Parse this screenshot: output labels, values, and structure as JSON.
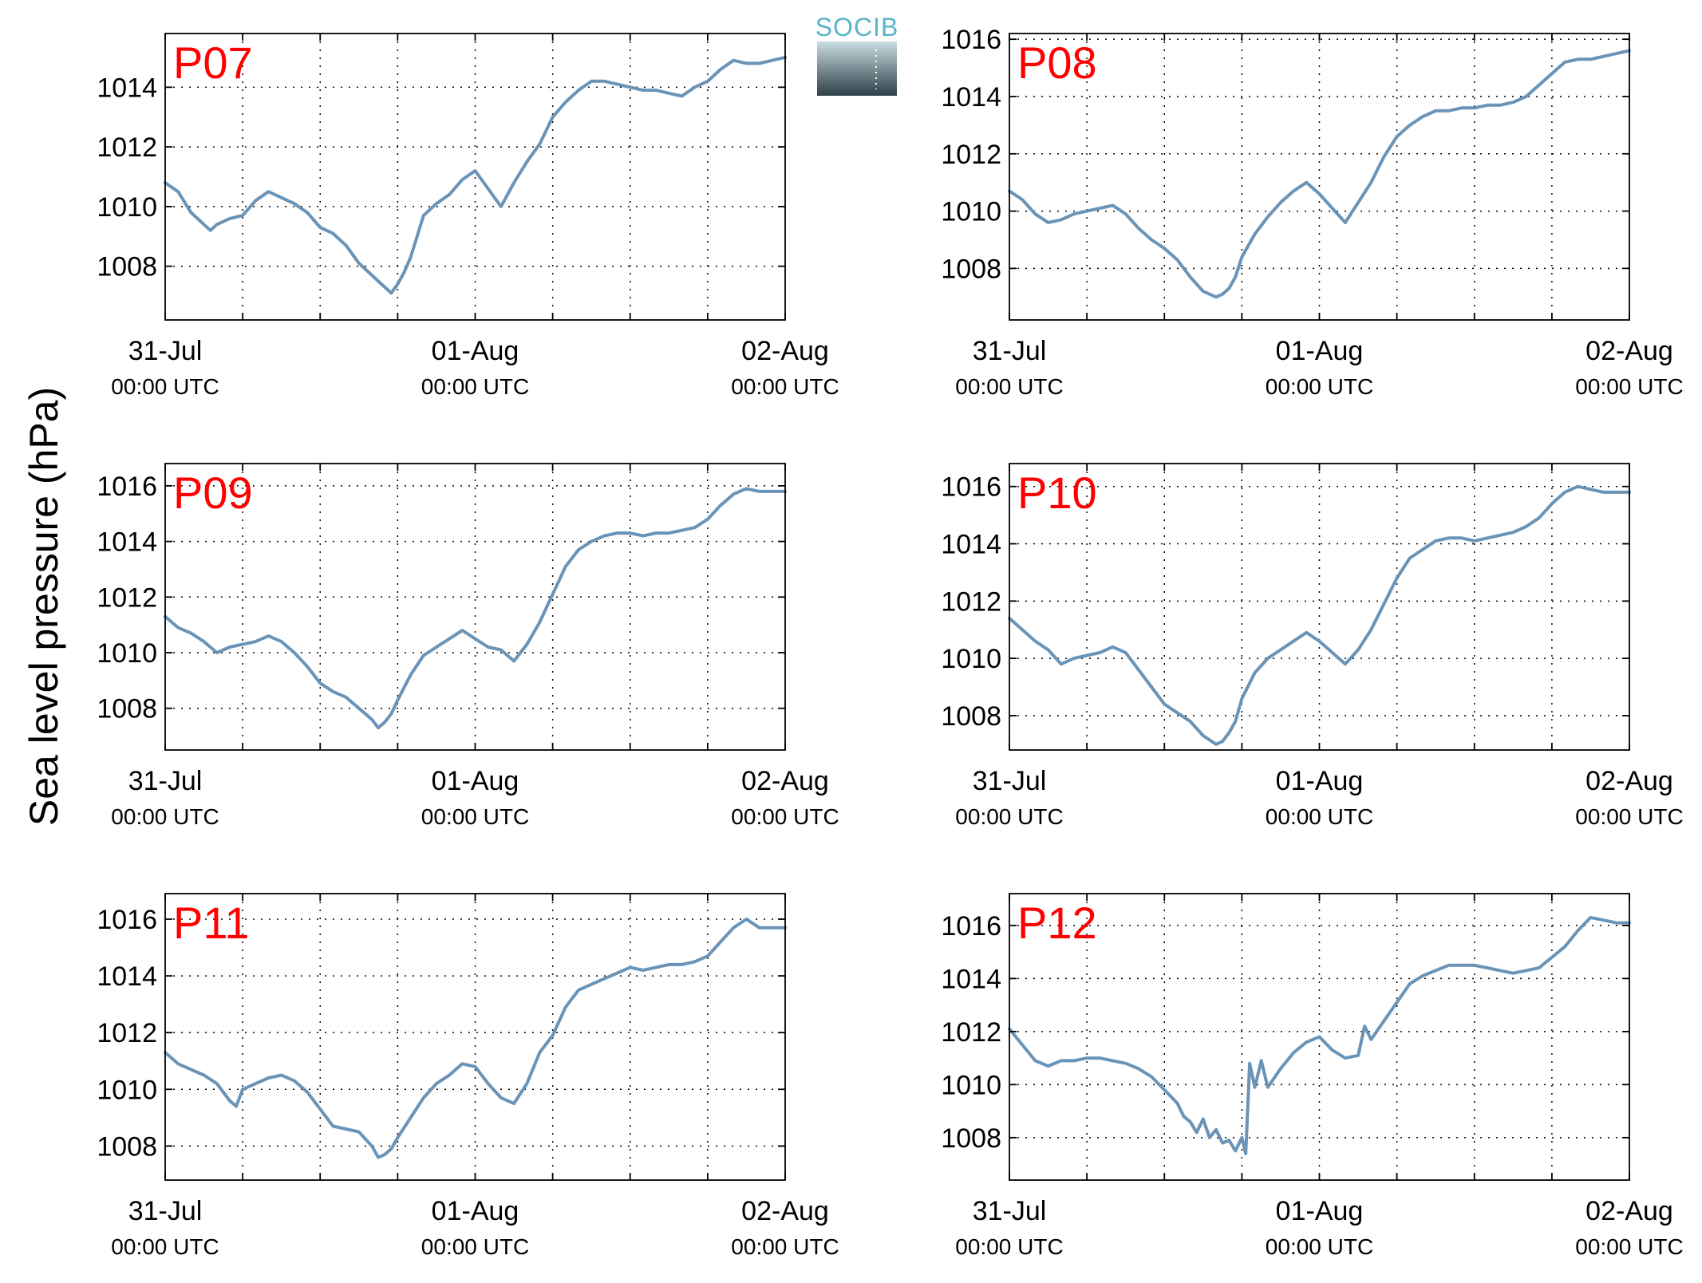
{
  "figure": {
    "ylabel": "Sea level pressure (hPa)",
    "logo_text": "SOCIB",
    "logo_colors": {
      "text": "#5ab4c8",
      "top": "#c8dde2",
      "bottom": "#2e4048"
    }
  },
  "chart_data": [
    {
      "type": "line",
      "title": "P07",
      "title_color": "#ff0000",
      "ylim": [
        1006.2,
        1015.8
      ],
      "yticks": [
        1008,
        1010,
        1012,
        1014
      ],
      "xlim": [
        0,
        48
      ],
      "grid": true,
      "line_color": "#6a94b7",
      "xtick_labels": [
        {
          "hours": 0,
          "date": "31-Jul",
          "time": "00:00 UTC"
        },
        {
          "hours": 24,
          "date": "01-Aug",
          "time": "00:00 UTC"
        },
        {
          "hours": 48,
          "date": "02-Aug",
          "time": "00:00 UTC"
        }
      ],
      "series": [
        {
          "x": [
            0,
            1,
            2,
            3,
            3.5,
            4,
            5,
            6,
            7,
            8,
            9,
            10,
            11,
            12,
            13,
            14,
            15,
            16,
            17,
            17.5,
            18,
            18.5,
            19,
            19.5,
            20,
            21,
            22,
            23,
            24,
            25,
            26,
            27,
            28,
            29,
            30,
            31,
            32,
            33,
            34,
            35,
            36,
            37,
            38,
            39,
            40,
            41,
            42,
            43,
            44,
            45,
            46,
            47,
            48
          ],
          "y": [
            1010.8,
            1010.5,
            1009.8,
            1009.4,
            1009.2,
            1009.4,
            1009.6,
            1009.7,
            1010.2,
            1010.5,
            1010.3,
            1010.1,
            1009.8,
            1009.3,
            1009.1,
            1008.7,
            1008.1,
            1007.7,
            1007.3,
            1007.1,
            1007.4,
            1007.8,
            1008.3,
            1009.0,
            1009.7,
            1010.1,
            1010.4,
            1010.9,
            1011.2,
            1010.6,
            1010.0,
            1010.8,
            1011.5,
            1012.1,
            1013.0,
            1013.5,
            1013.9,
            1014.2,
            1014.2,
            1014.1,
            1014.0,
            1013.9,
            1013.9,
            1013.8,
            1013.7,
            1014.0,
            1014.2,
            1014.6,
            1014.9,
            1014.8,
            1014.8,
            1014.9,
            1015.0
          ]
        }
      ]
    },
    {
      "type": "line",
      "title": "P08",
      "title_color": "#ff0000",
      "ylim": [
        1006.2,
        1016.2
      ],
      "yticks": [
        1008,
        1010,
        1012,
        1014,
        1016
      ],
      "xlim": [
        0,
        48
      ],
      "grid": true,
      "line_color": "#6a94b7",
      "xtick_labels": [
        {
          "hours": 0,
          "date": "31-Jul",
          "time": "00:00 UTC"
        },
        {
          "hours": 24,
          "date": "01-Aug",
          "time": "00:00 UTC"
        },
        {
          "hours": 48,
          "date": "02-Aug",
          "time": "00:00 UTC"
        }
      ],
      "series": [
        {
          "x": [
            0,
            1,
            2,
            3,
            4,
            5,
            6,
            7,
            8,
            9,
            10,
            11,
            12,
            13,
            14,
            15,
            16,
            16.5,
            17,
            17.5,
            18,
            19,
            20,
            21,
            22,
            23,
            24,
            25,
            26,
            27,
            28,
            29,
            30,
            31,
            32,
            33,
            34,
            35,
            36,
            37,
            38,
            39,
            40,
            41,
            42,
            43,
            44,
            45,
            46,
            47,
            48
          ],
          "y": [
            1010.7,
            1010.4,
            1009.9,
            1009.6,
            1009.7,
            1009.9,
            1010.0,
            1010.1,
            1010.2,
            1009.9,
            1009.4,
            1009.0,
            1008.7,
            1008.3,
            1007.7,
            1007.2,
            1007.0,
            1007.1,
            1007.3,
            1007.7,
            1008.4,
            1009.2,
            1009.8,
            1010.3,
            1010.7,
            1011.0,
            1010.6,
            1010.1,
            1009.6,
            1010.3,
            1011.0,
            1011.9,
            1012.6,
            1013.0,
            1013.3,
            1013.5,
            1013.5,
            1013.6,
            1013.6,
            1013.7,
            1013.7,
            1013.8,
            1014.0,
            1014.4,
            1014.8,
            1015.2,
            1015.3,
            1015.3,
            1015.4,
            1015.5,
            1015.6
          ]
        }
      ]
    },
    {
      "type": "line",
      "title": "P09",
      "title_color": "#ff0000",
      "ylim": [
        1006.5,
        1016.8
      ],
      "yticks": [
        1008,
        1010,
        1012,
        1014,
        1016
      ],
      "xlim": [
        0,
        48
      ],
      "grid": true,
      "line_color": "#6a94b7",
      "xtick_labels": [
        {
          "hours": 0,
          "date": "31-Jul",
          "time": "00:00 UTC"
        },
        {
          "hours": 24,
          "date": "01-Aug",
          "time": "00:00 UTC"
        },
        {
          "hours": 48,
          "date": "02-Aug",
          "time": "00:00 UTC"
        }
      ],
      "series": [
        {
          "x": [
            0,
            1,
            2,
            3,
            4,
            5,
            6,
            7,
            8,
            9,
            10,
            11,
            12,
            13,
            14,
            15,
            16,
            16.5,
            17,
            17.5,
            18,
            19,
            20,
            21,
            22,
            23,
            24,
            25,
            26,
            27,
            28,
            29,
            30,
            31,
            32,
            33,
            34,
            35,
            36,
            37,
            38,
            39,
            40,
            41,
            42,
            43,
            44,
            45,
            46,
            47,
            48
          ],
          "y": [
            1011.3,
            1010.9,
            1010.7,
            1010.4,
            1010.0,
            1010.2,
            1010.3,
            1010.4,
            1010.6,
            1010.4,
            1010.0,
            1009.5,
            1008.9,
            1008.6,
            1008.4,
            1008.0,
            1007.6,
            1007.3,
            1007.5,
            1007.8,
            1008.3,
            1009.2,
            1009.9,
            1010.2,
            1010.5,
            1010.8,
            1010.5,
            1010.2,
            1010.1,
            1009.7,
            1010.3,
            1011.1,
            1012.1,
            1013.1,
            1013.7,
            1014.0,
            1014.2,
            1014.3,
            1014.3,
            1014.2,
            1014.3,
            1014.3,
            1014.4,
            1014.5,
            1014.8,
            1015.3,
            1015.7,
            1015.9,
            1015.8,
            1015.8,
            1015.8
          ]
        }
      ]
    },
    {
      "type": "line",
      "title": "P10",
      "title_color": "#ff0000",
      "ylim": [
        1006.8,
        1016.8
      ],
      "yticks": [
        1008,
        1010,
        1012,
        1014,
        1016
      ],
      "xlim": [
        0,
        48
      ],
      "grid": true,
      "line_color": "#6a94b7",
      "xtick_labels": [
        {
          "hours": 0,
          "date": "31-Jul",
          "time": "00:00 UTC"
        },
        {
          "hours": 24,
          "date": "01-Aug",
          "time": "00:00 UTC"
        },
        {
          "hours": 48,
          "date": "02-Aug",
          "time": "00:00 UTC"
        }
      ],
      "series": [
        {
          "x": [
            0,
            1,
            2,
            3,
            4,
            5,
            6,
            7,
            8,
            9,
            10,
            11,
            12,
            13,
            14,
            15,
            16,
            16.5,
            17,
            17.5,
            18,
            19,
            20,
            21,
            22,
            23,
            24,
            25,
            26,
            27,
            28,
            29,
            30,
            31,
            32,
            33,
            34,
            35,
            36,
            37,
            38,
            39,
            40,
            41,
            42,
            43,
            44,
            45,
            46,
            47,
            48
          ],
          "y": [
            1011.4,
            1011.0,
            1010.6,
            1010.3,
            1009.8,
            1010.0,
            1010.1,
            1010.2,
            1010.4,
            1010.2,
            1009.6,
            1009.0,
            1008.4,
            1008.1,
            1007.8,
            1007.3,
            1007.0,
            1007.1,
            1007.4,
            1007.8,
            1008.6,
            1009.5,
            1010.0,
            1010.3,
            1010.6,
            1010.9,
            1010.6,
            1010.2,
            1009.8,
            1010.3,
            1011.0,
            1011.9,
            1012.8,
            1013.5,
            1013.8,
            1014.1,
            1014.2,
            1014.2,
            1014.1,
            1014.2,
            1014.3,
            1014.4,
            1014.6,
            1014.9,
            1015.4,
            1015.8,
            1016.0,
            1015.9,
            1015.8,
            1015.8,
            1015.8
          ]
        }
      ]
    },
    {
      "type": "line",
      "title": "P11",
      "title_color": "#ff0000",
      "ylim": [
        1006.8,
        1016.9
      ],
      "yticks": [
        1008,
        1010,
        1012,
        1014,
        1016
      ],
      "xlim": [
        0,
        48
      ],
      "grid": true,
      "line_color": "#6a94b7",
      "xtick_labels": [
        {
          "hours": 0,
          "date": "31-Jul",
          "time": "00:00 UTC"
        },
        {
          "hours": 24,
          "date": "01-Aug",
          "time": "00:00 UTC"
        },
        {
          "hours": 48,
          "date": "02-Aug",
          "time": "00:00 UTC"
        }
      ],
      "series": [
        {
          "x": [
            0,
            1,
            2,
            3,
            4,
            5,
            5.5,
            6,
            7,
            8,
            9,
            10,
            11,
            12,
            13,
            14,
            15,
            16,
            16.5,
            17,
            17.5,
            18,
            19,
            20,
            21,
            22,
            23,
            24,
            25,
            26,
            27,
            28,
            29,
            30,
            31,
            32,
            33,
            34,
            35,
            36,
            37,
            38,
            39,
            40,
            41,
            42,
            43,
            44,
            45,
            46,
            47,
            48
          ],
          "y": [
            1011.3,
            1010.9,
            1010.7,
            1010.5,
            1010.2,
            1009.6,
            1009.4,
            1010.0,
            1010.2,
            1010.4,
            1010.5,
            1010.3,
            1009.9,
            1009.3,
            1008.7,
            1008.6,
            1008.5,
            1008.0,
            1007.6,
            1007.7,
            1007.9,
            1008.3,
            1009.0,
            1009.7,
            1010.2,
            1010.5,
            1010.9,
            1010.8,
            1010.2,
            1009.7,
            1009.5,
            1010.2,
            1011.3,
            1011.9,
            1012.9,
            1013.5,
            1013.7,
            1013.9,
            1014.1,
            1014.3,
            1014.2,
            1014.3,
            1014.4,
            1014.4,
            1014.5,
            1014.7,
            1015.2,
            1015.7,
            1016.0,
            1015.7,
            1015.7,
            1015.7
          ]
        }
      ]
    },
    {
      "type": "line",
      "title": "P12",
      "title_color": "#ff0000",
      "ylim": [
        1006.4,
        1017.2
      ],
      "yticks": [
        1008,
        1010,
        1012,
        1014,
        1016
      ],
      "xlim": [
        0,
        48
      ],
      "grid": true,
      "line_color": "#6a94b7",
      "xtick_labels": [
        {
          "hours": 0,
          "date": "31-Jul",
          "time": "00:00 UTC"
        },
        {
          "hours": 24,
          "date": "01-Aug",
          "time": "00:00 UTC"
        },
        {
          "hours": 48,
          "date": "02-Aug",
          "time": "00:00 UTC"
        }
      ],
      "series": [
        {
          "x": [
            0,
            1,
            2,
            3,
            4,
            5,
            6,
            7,
            8,
            9,
            10,
            11,
            12,
            13,
            13.5,
            14,
            14.5,
            15,
            15.5,
            16,
            16.5,
            17,
            17.5,
            18,
            18.3,
            18.6,
            19,
            19.5,
            20,
            21,
            22,
            23,
            24,
            25,
            26,
            27,
            27.5,
            28,
            29,
            30,
            31,
            32,
            33,
            34,
            35,
            36,
            37,
            38,
            39,
            40,
            41,
            42,
            43,
            44,
            45,
            46,
            47,
            48
          ],
          "y": [
            1012.1,
            1011.5,
            1010.9,
            1010.7,
            1010.9,
            1010.9,
            1011.0,
            1011.0,
            1010.9,
            1010.8,
            1010.6,
            1010.3,
            1009.8,
            1009.3,
            1008.8,
            1008.6,
            1008.2,
            1008.7,
            1008.0,
            1008.3,
            1007.8,
            1007.9,
            1007.5,
            1008.0,
            1007.4,
            1010.8,
            1009.9,
            1010.9,
            1009.9,
            1010.6,
            1011.2,
            1011.6,
            1011.8,
            1011.3,
            1011.0,
            1011.1,
            1012.2,
            1011.7,
            1012.4,
            1013.1,
            1013.8,
            1014.1,
            1014.3,
            1014.5,
            1014.5,
            1014.5,
            1014.4,
            1014.3,
            1014.2,
            1014.3,
            1014.4,
            1014.8,
            1015.2,
            1015.8,
            1016.3,
            1016.2,
            1016.1,
            1016.1
          ]
        }
      ]
    }
  ]
}
